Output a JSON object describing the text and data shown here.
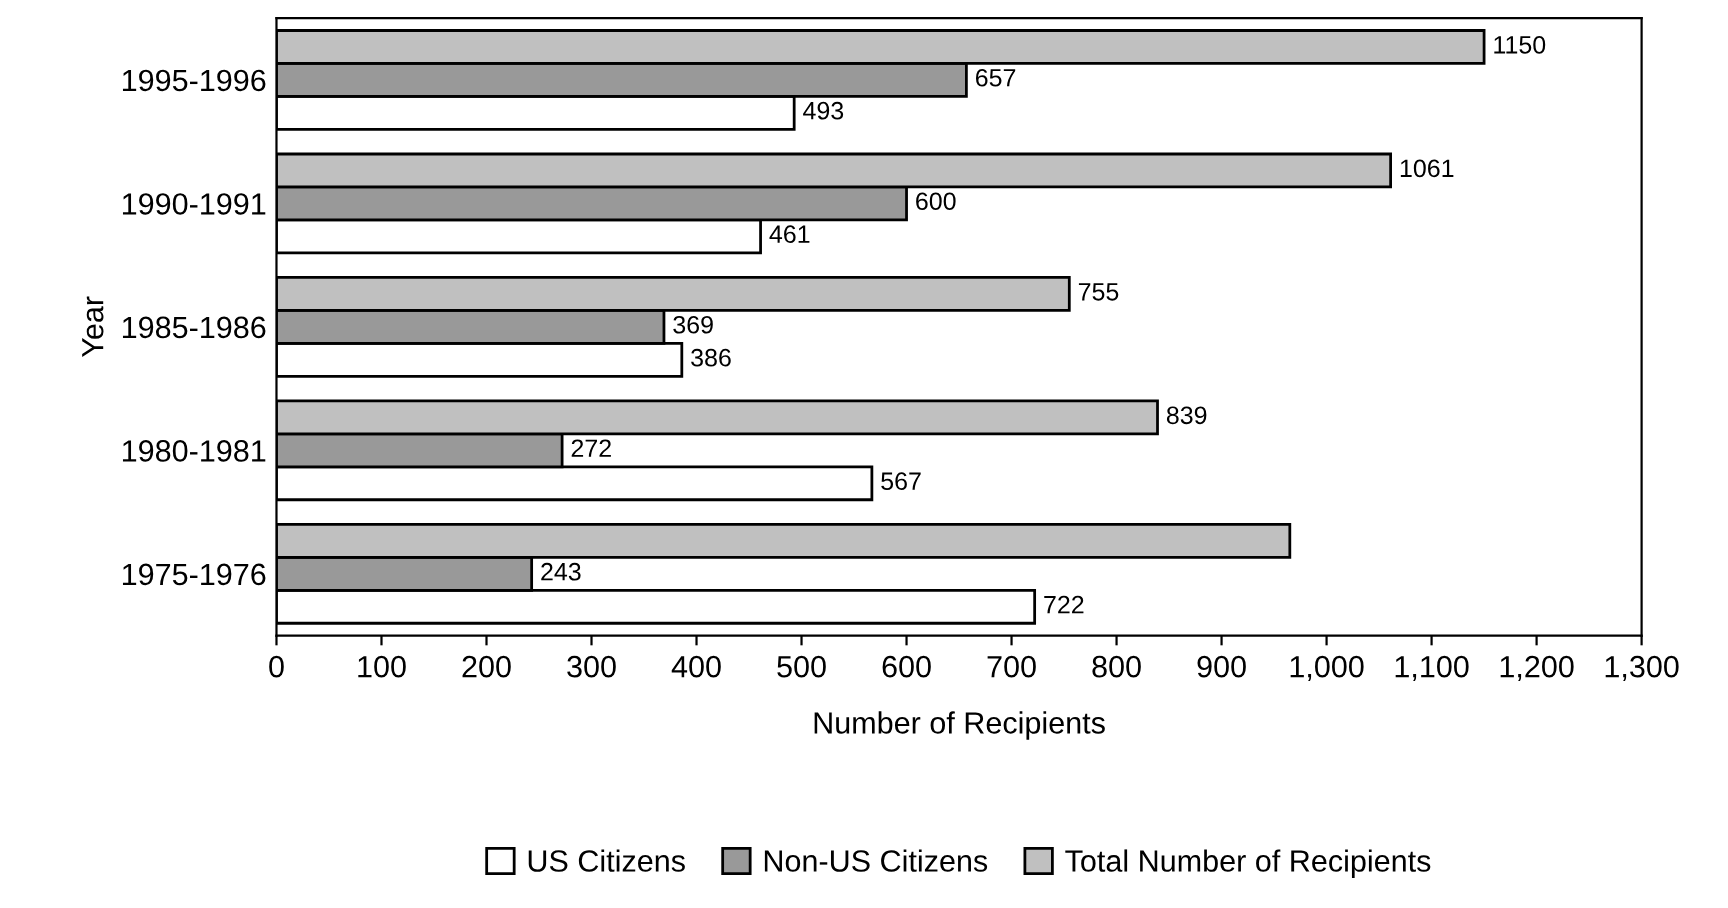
{
  "chart_data": {
    "type": "bar",
    "orientation": "horizontal",
    "xlabel": "Number of Recipients",
    "ylabel": "Year",
    "categories": [
      "1995-1996",
      "1990-1991",
      "1985-1986",
      "1980-1981",
      "1975-1976"
    ],
    "series": [
      {
        "name": "US Citizens",
        "color": "#ffffff",
        "values": [
          493,
          461,
          386,
          567,
          722
        ],
        "value_labels": [
          "493",
          "461",
          "386",
          "567",
          "722"
        ]
      },
      {
        "name": "Non-US Citizens",
        "color": "#999999",
        "values": [
          657,
          600,
          369,
          272,
          243
        ],
        "value_labels": [
          "657",
          "600",
          "369",
          "272",
          "243"
        ]
      },
      {
        "name": "Total Number of Recipients",
        "color": "#c0c0c0",
        "values": [
          1150,
          1061,
          755,
          839,
          965
        ],
        "value_labels": [
          "1150",
          "1061",
          "755",
          "839",
          null
        ]
      }
    ],
    "xlim": [
      0,
      1300
    ],
    "xticks": [
      0,
      100,
      200,
      300,
      400,
      500,
      600,
      700,
      800,
      900,
      {
        "value": 1000,
        "label": "1,000"
      },
      {
        "value": 1100,
        "label": "1,100"
      },
      {
        "value": 1200,
        "label": "1,200"
      },
      {
        "value": 1300,
        "label": "1,300"
      }
    ],
    "grid": false,
    "legend": "bottom"
  }
}
